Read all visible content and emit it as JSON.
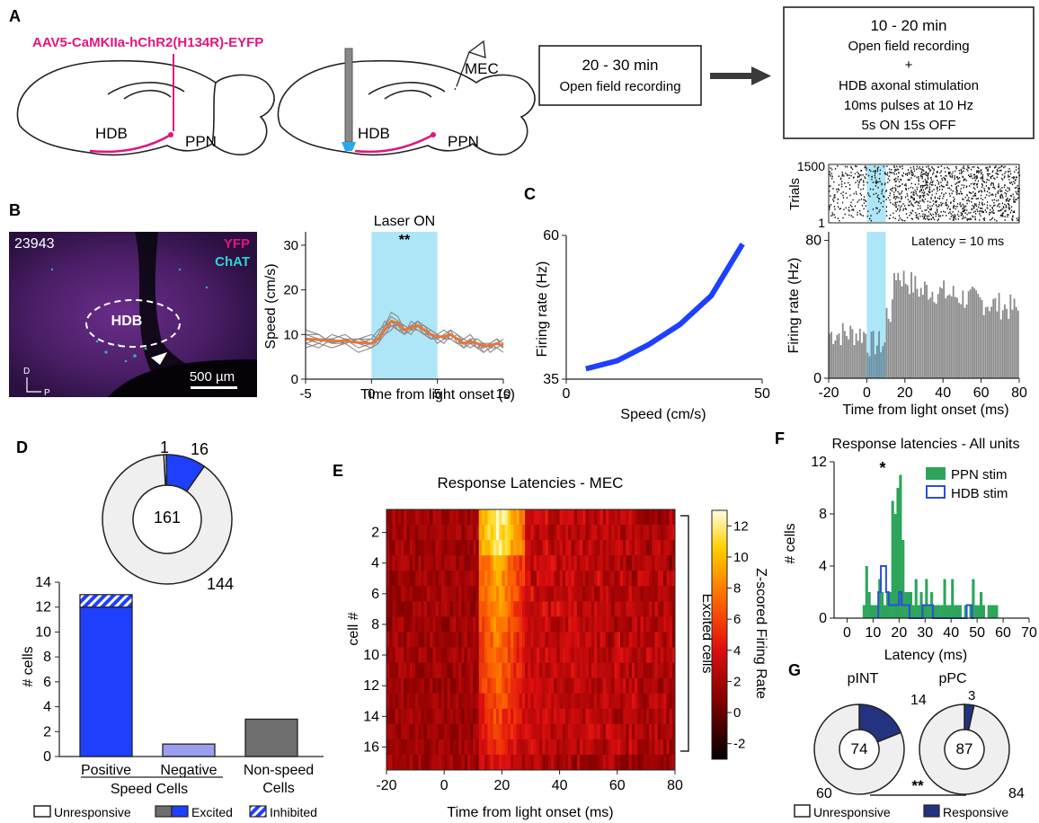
{
  "panel_labels": {
    "A": "A",
    "B": "B",
    "C": "C",
    "D": "D",
    "E": "E",
    "F": "F",
    "G": "G"
  },
  "panelA": {
    "virus": "AAV5-CaMKIIa-hChR2(H134R)-EYFP",
    "hdb_left": "HDB",
    "ppn_left": "PPN",
    "hdb_right": "HDB",
    "ppn_right": "PPN",
    "mec": "MEC",
    "box1": [
      "20 - 30 min",
      "Open field recording"
    ],
    "box2": [
      "10 - 20 min",
      "Open field recording",
      "+",
      "HDB axonal stimulation",
      "10ms pulses at 10 Hz",
      "5s ON 15s OFF"
    ]
  },
  "panelB": {
    "image_id": "23943",
    "yfp": "YFP",
    "chat": "ChAT",
    "hdb": "HDB",
    "scale": "500 µm",
    "axis_d": "D",
    "axis_p": "P",
    "laser_label": "Laser ON",
    "sig": "**"
  },
  "panelC": {
    "latency": "Latency = 10 ms"
  },
  "panelD": {
    "ring_center": "161",
    "ring_a": "1",
    "ring_b": "16",
    "ring_c": "144",
    "group_label": "Speed Cells",
    "legend": [
      "Unresponsive",
      "Excited",
      "Inhibited"
    ]
  },
  "panelE": {
    "bracket_label": "Excited cells"
  },
  "panelF": {
    "sig": "*"
  },
  "panelG": {
    "sig": "**",
    "legend": [
      "Unresponsive",
      "Responsive"
    ]
  },
  "colors": {
    "magenta": "#e0157f",
    "laser": "#aee6f7",
    "speed_blue": "#1f3fff",
    "orange": "#e8753a",
    "hist_gray": "#8a8a8a",
    "ppn_green": "#2ca55a",
    "hdb_blue": "#2b4fd9",
    "resp_navy": "#24337f",
    "ring_gray": "#efefef",
    "nonspeed_gray": "#6e6e6e",
    "neg_purple": "#9a9ef0"
  },
  "chart_data": [
    {
      "id": "B_speed",
      "type": "line",
      "title": "",
      "xlabel": "Time from light onset (s)",
      "ylabel": "Speed (cm/s)",
      "xlim": [
        -5,
        10
      ],
      "ylim": [
        0,
        33
      ],
      "xticks": [
        -5,
        0,
        5,
        10
      ],
      "yticks": [
        0,
        10,
        20,
        30
      ],
      "shaded": [
        0,
        5
      ],
      "mean": {
        "x": [
          -5,
          -4,
          -3,
          -2,
          -1,
          0,
          0.5,
          1,
          1.5,
          2,
          2.5,
          3,
          3.5,
          4,
          4.5,
          5,
          5.5,
          6,
          6.5,
          7,
          7.5,
          8,
          8.5,
          9,
          9.5,
          10
        ],
        "y": [
          9,
          8.8,
          8.5,
          8.6,
          8.2,
          8,
          9,
          11,
          13,
          12.5,
          11,
          11.5,
          12,
          11,
          10,
          9.5,
          9.5,
          10,
          9,
          8,
          8.5,
          8,
          7.5,
          7.5,
          8,
          7.5
        ]
      },
      "traces": [
        [
          8,
          9,
          8,
          9,
          7,
          8,
          10,
          13,
          12,
          11,
          10,
          12,
          13,
          11,
          9,
          9,
          10,
          9,
          8,
          7,
          8,
          7,
          6,
          7,
          8,
          7
        ],
        [
          10,
          9,
          9,
          8,
          9,
          9,
          11,
          12,
          14,
          13,
          12,
          11,
          11,
          10,
          11,
          10,
          9,
          11,
          10,
          9,
          8,
          9,
          8,
          8,
          7,
          6
        ],
        [
          9,
          8,
          10,
          9,
          8,
          7,
          8,
          10,
          12,
          11,
          10,
          13,
          12,
          12,
          10,
          8,
          9,
          9,
          8,
          9,
          10,
          8,
          7,
          8,
          9,
          8
        ],
        [
          11,
          10,
          8,
          9,
          9,
          10,
          9,
          12,
          15,
          14,
          11,
          10,
          12,
          11,
          9,
          10,
          11,
          10,
          9,
          8,
          8,
          7,
          8,
          7,
          7,
          8
        ],
        [
          7,
          8,
          7,
          8,
          6,
          7,
          9,
          11,
          13,
          12,
          12,
          11,
          13,
          12,
          11,
          10,
          9,
          9,
          10,
          8,
          7,
          8,
          6,
          7,
          8,
          7
        ],
        [
          9,
          9,
          9,
          8,
          9,
          8,
          10,
          10,
          11,
          13,
          11,
          12,
          11,
          10,
          10,
          9,
          8,
          10,
          9,
          7,
          9,
          9,
          8,
          6,
          7,
          8
        ],
        [
          8,
          7,
          9,
          10,
          8,
          9,
          8,
          11,
          12,
          12,
          10,
          11,
          12,
          11,
          10,
          9,
          10,
          11,
          8,
          8,
          9,
          7,
          7,
          8,
          9,
          7
        ],
        [
          10,
          10,
          8,
          8,
          9,
          8,
          9,
          12,
          13,
          11,
          11,
          12,
          12,
          10,
          9,
          10,
          9,
          10,
          9,
          9,
          8,
          8,
          8,
          7,
          8,
          9
        ]
      ]
    },
    {
      "id": "C_rate",
      "type": "line",
      "title": "",
      "xlabel": "Speed (cm/s)",
      "ylabel": "Firing rate (Hz)",
      "xlim": [
        0,
        50
      ],
      "ylim": [
        35,
        60
      ],
      "xticks": [
        0,
        50
      ],
      "yticks": [
        35,
        60
      ],
      "x": [
        5,
        13,
        21,
        29,
        37,
        45
      ],
      "y": [
        36.8,
        38.2,
        41,
        44.5,
        49.5,
        58.5
      ]
    },
    {
      "id": "C_psth",
      "type": "bar",
      "title": "",
      "xlabel": "Time from light onset (ms)",
      "ylabel": "Firing rate (Hz)",
      "raster_ylabel": "Trials",
      "raster_yticks": [
        1,
        1500
      ],
      "xlim": [
        -20,
        80
      ],
      "ylim": [
        0,
        85
      ],
      "xticks": [
        -20,
        0,
        20,
        40,
        60,
        80
      ],
      "yticks": [
        0,
        80
      ],
      "shaded": [
        0,
        10
      ],
      "bin_width": 1
    },
    {
      "id": "D_bars",
      "type": "bar",
      "title": "",
      "xlabel": "",
      "ylabel": "# cells",
      "categories": [
        "Positive",
        "Negative",
        "Non-speed Cells"
      ],
      "series": [
        {
          "name": "Excited",
          "values": [
            12,
            1,
            3
          ]
        },
        {
          "name": "Inhibited",
          "values": [
            1,
            0,
            0
          ]
        }
      ],
      "ylim": [
        0,
        14
      ],
      "yticks": [
        0,
        2,
        4,
        6,
        8,
        10,
        12,
        14
      ]
    },
    {
      "id": "D_ring",
      "type": "pie",
      "values": [
        144,
        16,
        1
      ],
      "labels": [
        "144",
        "16",
        "1"
      ]
    },
    {
      "id": "E_heatmap",
      "type": "heatmap",
      "title": "Response Latencies - MEC",
      "xlabel": "Time from light onset (ms)",
      "ylabel": "cell #",
      "colorbar_label": "Z-scored Firing Rate",
      "xlim": [
        -20,
        80
      ],
      "xticks": [
        -20,
        0,
        20,
        40,
        60,
        80
      ],
      "yticks": [
        2,
        4,
        6,
        8,
        10,
        12,
        14,
        16
      ],
      "clim": [
        -3,
        13
      ],
      "cticks": [
        -2,
        0,
        2,
        4,
        6,
        8,
        10,
        12
      ],
      "rows": 17
    },
    {
      "id": "F_hist",
      "type": "bar",
      "title": "Response latencies - All units",
      "xlabel": "Latency (ms)",
      "ylabel": "# cells",
      "xlim": [
        -5,
        70
      ],
      "ylim": [
        0,
        12
      ],
      "xticks": [
        0,
        10,
        20,
        30,
        40,
        50,
        60,
        70
      ],
      "yticks": [
        0,
        4,
        8,
        12
      ],
      "series": [
        {
          "name": "PPN stim",
          "x": [
            6,
            7,
            8,
            9,
            10,
            11,
            12,
            13,
            14,
            15,
            16,
            17,
            18,
            19,
            20,
            21,
            22,
            23,
            24,
            25,
            26,
            27,
            28,
            29,
            30,
            31,
            32,
            33,
            34,
            35,
            36,
            37,
            38,
            39,
            40,
            41,
            42,
            43,
            44,
            45,
            46,
            47,
            48,
            49,
            50,
            51,
            52,
            53,
            54,
            55,
            56,
            57
          ],
          "values": [
            1,
            4,
            2,
            1,
            1,
            1,
            3,
            2,
            1,
            2,
            2,
            9,
            8,
            10,
            11,
            6,
            2,
            2,
            2,
            1,
            3,
            1,
            2,
            1,
            3,
            1,
            2,
            1,
            1,
            1,
            1,
            3,
            1,
            1,
            3,
            1,
            1,
            1,
            0,
            1,
            0,
            1,
            3,
            1,
            1,
            2,
            1,
            0,
            1,
            1,
            1,
            1
          ]
        },
        {
          "name": "HDB stim",
          "x": [
            12,
            13,
            14,
            15,
            16,
            17,
            18,
            19,
            20,
            21,
            22,
            23,
            24,
            25,
            26,
            27,
            28,
            29,
            30,
            31,
            32,
            33,
            34,
            35,
            36,
            37,
            38,
            39,
            40,
            41,
            42,
            43,
            44,
            45,
            46,
            47,
            48
          ],
          "values": [
            2,
            4,
            4,
            2,
            1,
            1,
            1,
            1,
            2,
            1,
            1,
            1,
            0,
            0,
            0,
            0,
            0,
            1,
            1,
            1,
            1,
            0,
            0,
            0,
            0,
            0,
            0,
            0,
            0,
            0,
            0,
            0,
            0,
            0,
            1,
            1,
            0
          ]
        }
      ]
    },
    {
      "id": "G_pINT",
      "type": "pie",
      "title": "pINT",
      "values": [
        60,
        14
      ],
      "labels": [
        "60",
        "14"
      ],
      "center": "74"
    },
    {
      "id": "G_pPC",
      "type": "pie",
      "title": "pPC",
      "values": [
        84,
        3
      ],
      "labels": [
        "84",
        "3"
      ],
      "center": "87"
    }
  ]
}
